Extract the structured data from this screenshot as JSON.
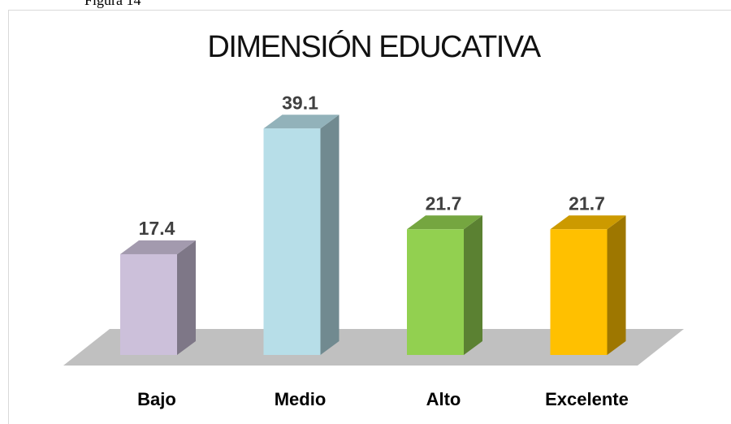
{
  "caption": "Figura 14",
  "chart_data": {
    "type": "bar3d",
    "title": "DIMENSIÓN EDUCATIVA",
    "categories": [
      "Bajo",
      "Medio",
      "Alto",
      "Excelente"
    ],
    "values": [
      17.4,
      39.1,
      21.7,
      21.7
    ],
    "colors": [
      "#ccc0da",
      "#b7dee8",
      "#92d050",
      "#ffc000"
    ]
  }
}
